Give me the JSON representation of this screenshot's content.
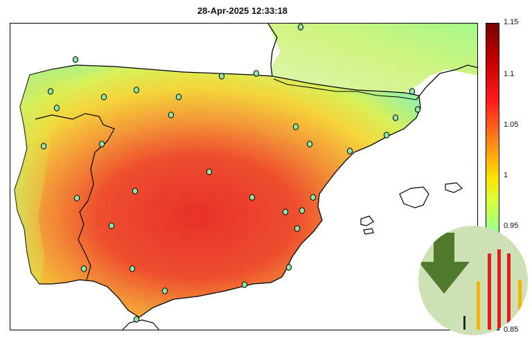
{
  "title": "28-Apr-2025 12:33:18",
  "colorbar": {
    "ticks": [
      "1.15",
      "1.1",
      "1.05",
      "1",
      "0.95",
      "0.85"
    ],
    "colormap": [
      "#7a0000",
      "#ff1a1a",
      "#ffe000",
      "#8affa0",
      "#00b0ff"
    ]
  },
  "map": {
    "colors": {
      "land_high": "#e83a2a",
      "land_mid": "#f6a23a",
      "land_low": "#f2e030",
      "sea_high": "#7fffa0",
      "coast": "#000000",
      "station": "#8fe8a6"
    },
    "stations_count": 34
  },
  "badge": {
    "icon": "download-arrow-icon",
    "colors": {
      "arrow": "#4f7a2e",
      "bar_red": "#e01e1e",
      "bar_orange": "#f4b400"
    }
  }
}
